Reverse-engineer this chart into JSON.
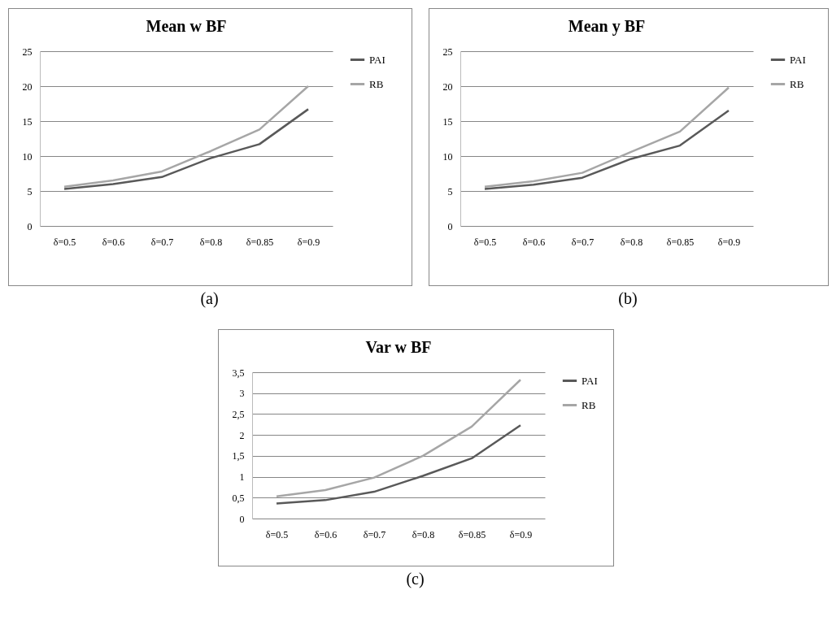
{
  "chart_data": [
    {
      "type": "line",
      "title": "Mean w BF",
      "categories": [
        "δ=0.5",
        "δ=0.6",
        "δ=0.7",
        "δ=0.8",
        "δ=0.85",
        "δ=0.9"
      ],
      "series": [
        {
          "name": "PAI",
          "color": "#595959",
          "values": [
            5.3,
            6.0,
            7.0,
            9.7,
            11.7,
            16.7
          ]
        },
        {
          "name": "RB",
          "color": "#a6a6a6",
          "values": [
            5.6,
            6.5,
            7.8,
            10.7,
            13.8,
            20.0
          ]
        }
      ],
      "ylim": [
        0,
        25
      ],
      "yticks": [
        0,
        5,
        10,
        15,
        20,
        25
      ],
      "grid": "y",
      "legend": "right",
      "annotations": [
        "(a)"
      ]
    },
    {
      "type": "line",
      "title": "Mean y BF",
      "categories": [
        "δ=0.5",
        "δ=0.6",
        "δ=0.7",
        "δ=0.8",
        "δ=0.85",
        "δ=0.9"
      ],
      "series": [
        {
          "name": "PAI",
          "color": "#595959",
          "values": [
            5.3,
            5.9,
            6.9,
            9.6,
            11.5,
            16.5
          ]
        },
        {
          "name": "RB",
          "color": "#a6a6a6",
          "values": [
            5.6,
            6.4,
            7.6,
            10.6,
            13.5,
            19.8
          ]
        }
      ],
      "ylim": [
        0,
        25
      ],
      "yticks": [
        0,
        5,
        10,
        15,
        20,
        25
      ],
      "grid": "y",
      "legend": "right",
      "annotations": [
        "(b)"
      ]
    },
    {
      "type": "line",
      "title": "Var w BF",
      "categories": [
        "δ=0.5",
        "δ=0.6",
        "δ=0.7",
        "δ=0.8",
        "δ=0.85",
        "δ=0.9"
      ],
      "series": [
        {
          "name": "PAI",
          "color": "#595959",
          "values": [
            0.36,
            0.44,
            0.64,
            1.02,
            1.44,
            2.23
          ]
        },
        {
          "name": "RB",
          "color": "#a6a6a6",
          "values": [
            0.53,
            0.68,
            0.98,
            1.5,
            2.2,
            3.32
          ]
        }
      ],
      "ylim": [
        0,
        3.5
      ],
      "yticks": [
        0,
        {
          "value": 0.5,
          "label": "0,5"
        },
        1,
        {
          "value": 1.5,
          "label": "1,5"
        },
        2,
        {
          "value": 2.5,
          "label": "2,5"
        },
        3,
        {
          "value": 3.5,
          "label": "3,5"
        }
      ],
      "grid": "y",
      "legend": "right",
      "annotations": [
        "(c)"
      ]
    }
  ]
}
